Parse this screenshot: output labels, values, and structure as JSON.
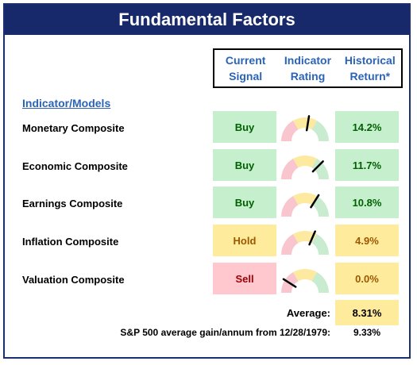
{
  "title": "Fundamental Factors",
  "headers": {
    "current_signal": [
      "Current",
      "Signal"
    ],
    "indicator_rating": [
      "Indicator",
      "Rating"
    ],
    "historical_return": [
      "Historical",
      "Return*"
    ]
  },
  "section_label": "Indicator/Models",
  "rows": [
    {
      "label": "Monetary Composite",
      "signal": "Buy",
      "signal_color": "green",
      "rating": 0.55,
      "return": "14.2%",
      "return_color": "green"
    },
    {
      "label": "Economic Composite",
      "signal": "Buy",
      "signal_color": "green",
      "rating": 0.75,
      "return": "11.7%",
      "return_color": "green"
    },
    {
      "label": "Earnings Composite",
      "signal": "Buy",
      "signal_color": "green",
      "rating": 0.68,
      "return": "10.8%",
      "return_color": "green"
    },
    {
      "label": "Inflation Composite",
      "signal": "Hold",
      "signal_color": "yellow",
      "rating": 0.63,
      "return": "4.9%",
      "return_color": "yellow"
    },
    {
      "label": "Valuation Composite",
      "signal": "Sell",
      "signal_color": "red",
      "rating": 0.18,
      "return": "0.0%",
      "return_color": "yellow"
    }
  ],
  "average_label": "Average:",
  "average_value": "8.31%",
  "sp500_label": "S&P 500 average gain/annum from 12/28/1979:",
  "sp500_value": "9.33%",
  "colors": {
    "gauge_red": "#f9c6cf",
    "gauge_yellow": "#fde9a0",
    "gauge_green": "#c9ecd0",
    "needle": "#000000"
  }
}
